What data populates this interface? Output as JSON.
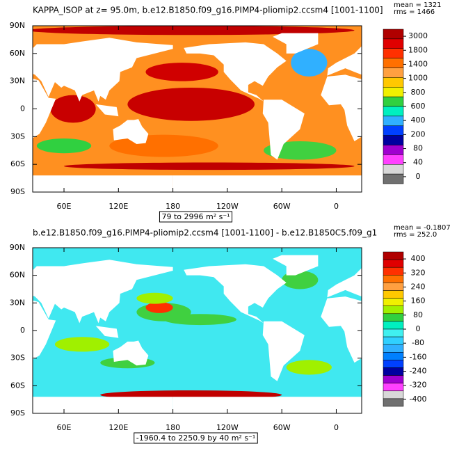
{
  "panels": [
    {
      "title": "KAPPA_ISOP at z=  95.0m, b.e12.B1850.f09_g16.PIMP4-pliomip2.ccsm4 [1001-1100]",
      "mean": "mean = 1321",
      "rms": "rms = 1466",
      "range": "79 to 2996 m² s⁻¹",
      "xlim": [
        25.5,
        388
      ],
      "ylim": [
        -90,
        90
      ],
      "xticks": [
        60,
        120,
        180,
        {
          "value": 240,
          "label": "120W"
        },
        {
          "value": 300,
          "label": "60W"
        },
        {
          "value": 360,
          "label": "0"
        }
      ],
      "xtick_labels": [
        "60E",
        "120E",
        "180",
        null,
        null,
        null
      ],
      "yticks": [
        {
          "value": 90,
          "label": "90N"
        },
        {
          "value": 60,
          "label": "60N"
        },
        {
          "value": 30,
          "label": "30N"
        },
        0,
        {
          "value": -30,
          "label": "30S"
        },
        {
          "value": -60,
          "label": "60S"
        },
        {
          "value": -90,
          "label": "90S"
        }
      ],
      "colorbar": [
        3000,
        1800,
        1400,
        1000,
        800,
        600,
        400,
        200,
        80,
        40,
        0
      ],
      "colors": [
        "#b00000",
        "#e00000",
        "#ff3000",
        "#ff7000",
        "#ffa040",
        "#ffc800",
        "#f0f000",
        "#30d040",
        "#00f0c0",
        "#30b0ff",
        "#0040ff",
        "#0000a0",
        "#a000d0",
        "#ff40ff",
        "#d8d8d8",
        "#707070"
      ],
      "ocean": "#ff9020",
      "blobs": [
        [
          200,
          5,
          70,
          18,
          "#c80000"
        ],
        [
          170,
          -40,
          60,
          12,
          "#ff7000"
        ],
        [
          320,
          -45,
          40,
          10,
          "#40d040"
        ],
        [
          60,
          -40,
          30,
          8,
          "#30d040"
        ],
        [
          70,
          0,
          25,
          15,
          "#c80000"
        ],
        [
          330,
          50,
          20,
          15,
          "#30b0ff"
        ],
        [
          190,
          40,
          40,
          10,
          "#d00000"
        ],
        [
          220,
          -62,
          160,
          4,
          "#c00000"
        ],
        [
          200,
          85,
          180,
          5,
          "#c00000"
        ]
      ]
    },
    {
      "title": "b.e12.B1850.f09_g16.PIMP4-pliomip2.ccsm4 [1001-1100] - b.e12.B1850C5.f09_g1",
      "mean": "mean = -0.1807",
      "rms": "rms = 252.0",
      "range": "-1960.4 to 2250.9 by 40 m² s⁻¹",
      "xlim": [
        25.5,
        388
      ],
      "ylim": [
        -90,
        90
      ],
      "xticks": [
        60,
        120,
        180,
        {
          "value": 240,
          "label": "120W"
        },
        {
          "value": 300,
          "label": "60W"
        },
        {
          "value": 360,
          "label": "0"
        }
      ],
      "xtick_labels": [
        "60E",
        "120E",
        "180",
        null,
        null,
        null
      ],
      "yticks": [
        {
          "value": 90,
          "label": "90N"
        },
        {
          "value": 60,
          "label": "60N"
        },
        {
          "value": 30,
          "label": "30N"
        },
        0,
        {
          "value": -30,
          "label": "30S"
        },
        {
          "value": -60,
          "label": "60S"
        },
        {
          "value": -90,
          "label": "90S"
        }
      ],
      "colorbar": [
        400,
        320,
        240,
        160,
        80,
        0,
        -80,
        -160,
        -240,
        -320,
        -400
      ],
      "colors": [
        "#b00000",
        "#e00000",
        "#ff3000",
        "#ff7000",
        "#ffa040",
        "#ffc800",
        "#f0f000",
        "#a0f000",
        "#30d040",
        "#00f0c0",
        "#40f0f0",
        "#30d0ff",
        "#30b0ff",
        "#0080ff",
        "#0040ff",
        "#0000a0",
        "#a000d0",
        "#ff40ff",
        "#d8d8d8",
        "#707070"
      ],
      "ocean": "#40e8f0",
      "blobs": [
        [
          170,
          20,
          30,
          10,
          "#40d040"
        ],
        [
          165,
          25,
          15,
          6,
          "#ff3000"
        ],
        [
          210,
          12,
          40,
          6,
          "#40d040"
        ],
        [
          80,
          -15,
          30,
          8,
          "#a0f000"
        ],
        [
          200,
          -70,
          100,
          5,
          "#c00000"
        ],
        [
          130,
          -35,
          30,
          6,
          "#40d040"
        ],
        [
          330,
          -40,
          25,
          8,
          "#a0f000"
        ],
        [
          320,
          55,
          20,
          10,
          "#40d040"
        ],
        [
          160,
          35,
          20,
          6,
          "#a0f000"
        ]
      ]
    }
  ]
}
